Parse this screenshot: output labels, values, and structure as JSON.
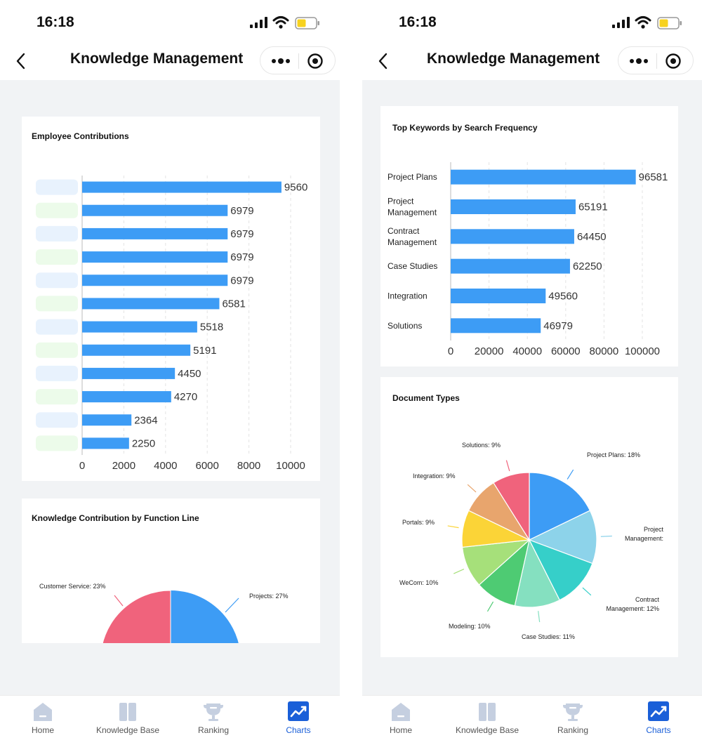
{
  "screens": [
    {
      "status": {
        "time": "16:18"
      },
      "nav": {
        "title": "Knowledge Management"
      },
      "cards": {
        "employee": {
          "title": "Employee Contributions"
        },
        "function_line": {
          "title": "Knowledge Contribution by Function Line"
        }
      }
    },
    {
      "status": {
        "time": "16:18"
      },
      "nav": {
        "title": "Knowledge Management"
      },
      "cards": {
        "keywords": {
          "title": "Top Keywords by Search Frequency"
        },
        "doctypes": {
          "title": "Document Types"
        }
      }
    }
  ],
  "tabbar": {
    "items": [
      {
        "label": "Home",
        "icon": "home-icon"
      },
      {
        "label": "Knowledge Base",
        "icon": "book-icon"
      },
      {
        "label": "Ranking",
        "icon": "trophy-icon"
      },
      {
        "label": "Charts",
        "icon": "chart-icon",
        "active": true
      }
    ]
  },
  "colors": {
    "bar": "#3d9cf5",
    "active_tab": "#1a5fd8",
    "inactive_tab": "#c5cfe0",
    "background": "#f1f3f5"
  },
  "chart_data": [
    {
      "type": "bar",
      "orientation": "horizontal",
      "title": "Employee Contributions",
      "categories": [
        "",
        "",
        "",
        "",
        "",
        "",
        "",
        "",
        "",
        "",
        "",
        ""
      ],
      "values": [
        9560,
        6979,
        6979,
        6979,
        6979,
        6581,
        5518,
        5191,
        4450,
        4270,
        2364,
        2250
      ],
      "data_labels": [
        "9560",
        "6979",
        "6979",
        "6979",
        "6979",
        "6581",
        "5518",
        "5191",
        "4450",
        "4270",
        "2364",
        "2250"
      ],
      "xlim": [
        0,
        10000
      ],
      "xticks": [
        "0",
        "2000",
        "4000",
        "6000",
        "8000",
        "10000"
      ],
      "grid": true
    },
    {
      "type": "pie",
      "title": "Knowledge Contribution by Function Line",
      "slices": [
        {
          "label": "Projects: 27%",
          "value": 27,
          "color": "#3d9cf5"
        },
        {
          "label": "Customer Service: 23%",
          "value": 23,
          "color": "#f0637c"
        }
      ],
      "note": "chart cut off; only top portion of first and last slice visible"
    },
    {
      "type": "bar",
      "orientation": "horizontal",
      "title": "Top Keywords by Search Frequency",
      "categories": [
        "Project Plans",
        "Project Management",
        "Contract Management",
        "Case Studies",
        "Integration",
        "Solutions"
      ],
      "category_lines": [
        [
          "Project Plans"
        ],
        [
          "Project",
          "Management"
        ],
        [
          "Contract",
          "Management"
        ],
        [
          "Case Studies"
        ],
        [
          "Integration"
        ],
        [
          "Solutions"
        ]
      ],
      "values": [
        96581,
        65191,
        64450,
        62250,
        49560,
        46979
      ],
      "data_labels": [
        "96581",
        "65191",
        "64450",
        "62250",
        "49560",
        "46979"
      ],
      "xlim": [
        0,
        100000
      ],
      "xticks": [
        "0",
        "20000",
        "40000",
        "60000",
        "80000",
        "100000"
      ],
      "grid": true
    },
    {
      "type": "pie",
      "title": "Document Types",
      "slices": [
        {
          "label": "Project Plans: 18%",
          "value": 18,
          "color": "#3d9cf5"
        },
        {
          "label": "Project Management:",
          "value": 13,
          "color": "#8dd3ea"
        },
        {
          "label": "Contract Management: 12%",
          "value": 12,
          "color": "#36cfc9"
        },
        {
          "label": "Case Studies: 11%",
          "value": 11,
          "color": "#85e0c0"
        },
        {
          "label": "Modeling: 10%",
          "value": 10,
          "color": "#4ecb73"
        },
        {
          "label": "WeCom: 10%",
          "value": 10,
          "color": "#a6e07a"
        },
        {
          "label": "Portals: 9%",
          "value": 9,
          "color": "#fbd437"
        },
        {
          "label": "Integration: 9%",
          "value": 9,
          "color": "#e8a56d"
        },
        {
          "label": "Solutions: 9%",
          "value": 9,
          "color": "#f0637c"
        }
      ]
    }
  ]
}
